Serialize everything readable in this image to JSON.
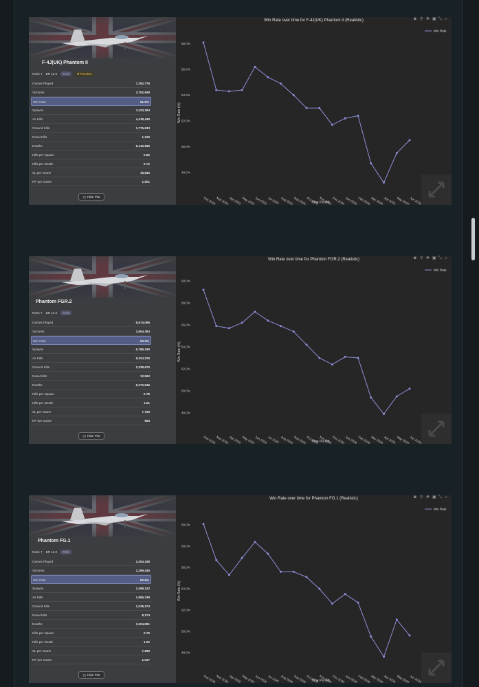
{
  "page": {
    "hide_plot_label": "Hide Plot",
    "toolbar_icons": [
      "camera-icon",
      "zoom-icon",
      "pan-icon",
      "autoscale-icon",
      "reset-axes-icon",
      "home-icon"
    ],
    "accent_line_color": "#8e8fd8",
    "highlight_row_color": "#545d85"
  },
  "vehicles": [
    {
      "name": "F-4J(UK) Phantom II",
      "rank": "Rank 7",
      "br": "BR 12.0",
      "id_badge": "#141",
      "premium_label": "Premium",
      "is_premium": true,
      "stats": [
        {
          "label": "Games Played",
          "value": "7,292,776"
        },
        {
          "label": "Victories",
          "value": "3,752,949"
        },
        {
          "label": "Win Rate",
          "value": "51.5%",
          "highlight": true
        },
        {
          "label": "Spawns",
          "value": "7,423,184"
        },
        {
          "label": "Air Kills",
          "value": "4,418,449"
        },
        {
          "label": "Ground Kills",
          "value": "1,776,933"
        },
        {
          "label": "Naval Kills",
          "value": "1,125"
        },
        {
          "label": "Deaths",
          "value": "6,140,585"
        },
        {
          "label": "Kills per Spawn",
          "value": "0.60"
        },
        {
          "label": "Kills per Death",
          "value": "0.72"
        },
        {
          "label": "SL per Game",
          "value": "15,844"
        },
        {
          "label": "RP per Game",
          "value": "1,921"
        }
      ],
      "chart_data": {
        "type": "line",
        "title": "Win Rate over time for F-4J(UK) Phantom II (Realistic)",
        "xlabel": "Time Period",
        "ylabel": "Win Rate (%)",
        "legend": "Win Rate",
        "legend_position": "top-right",
        "categories": [
          "Feb 2025",
          "Mar 2025",
          "Apr 2025",
          "May 2025",
          "Jun 2025",
          "Jul 2025",
          "Aug 2025",
          "Sep 2025",
          "Oct 2025",
          "Nov 2025",
          "Dec 2025",
          "Jan 2026",
          "Feb 2026",
          "Mar 2026",
          "Apr 2026",
          "May 2026",
          "Jun 2026"
        ],
        "values": [
          58.1,
          54.4,
          54.3,
          54.4,
          56.2,
          55.4,
          54.9,
          54.0,
          53.0,
          53.0,
          51.7,
          52.2,
          52.4,
          48.7,
          47.2,
          49.5,
          50.5
        ],
        "yticks": [
          "48.0%",
          "50.0%",
          "52.0%",
          "54.0%",
          "56.0%",
          "58.0%"
        ],
        "ylim": [
          46.6,
          59.0
        ],
        "grid": false
      }
    },
    {
      "name": "Phantom FGR.2",
      "rank": "Rank 7",
      "br": "BR 12.0",
      "id_badge": "#109",
      "premium_label": "",
      "is_premium": false,
      "stats": [
        {
          "label": "Games Played",
          "value": "6,674,095"
        },
        {
          "label": "Victories",
          "value": "3,554,393"
        },
        {
          "label": "Win Rate",
          "value": "53.3%",
          "highlight": true
        },
        {
          "label": "Spawns",
          "value": "6,786,349"
        },
        {
          "label": "Air Kills",
          "value": "5,324,225"
        },
        {
          "label": "Ground Kills",
          "value": "2,338,675"
        },
        {
          "label": "Naval Kills",
          "value": "12,563"
        },
        {
          "label": "Deaths",
          "value": "5,272,546"
        },
        {
          "label": "Kills per Spawn",
          "value": "0.78"
        },
        {
          "label": "Kills per Death",
          "value": "1.01"
        },
        {
          "label": "SL per Game",
          "value": "7,759"
        },
        {
          "label": "RP per Game",
          "value": "963"
        }
      ],
      "chart_data": {
        "type": "line",
        "title": "Win Rate over time for Phantom FGR.2 (Realistic)",
        "xlabel": "Time Period",
        "ylabel": "Win Rate (%)",
        "legend": "Win Rate",
        "legend_position": "top-right",
        "categories": [
          "Feb 2025",
          "Mar 2025",
          "Apr 2025",
          "May 2025",
          "Jun 2025",
          "Jul 2025",
          "Aug 2025",
          "Sep 2025",
          "Oct 2025",
          "Nov 2025",
          "Dec 2025",
          "Jan 2026",
          "Feb 2026",
          "Mar 2026",
          "Apr 2026",
          "May 2026",
          "Jun 2026"
        ],
        "values": [
          59.2,
          55.9,
          55.7,
          56.2,
          57.2,
          56.4,
          55.9,
          55.4,
          54.2,
          53.0,
          52.4,
          53.1,
          53.0,
          49.4,
          47.9,
          49.5,
          50.2
        ],
        "yticks": [
          "48.0%",
          "50.0%",
          "52.0%",
          "54.0%",
          "56.0%",
          "58.0%",
          "60.0%"
        ],
        "ylim": [
          46.5,
          61.0
        ],
        "grid": false
      }
    },
    {
      "name": "Phantom FG.1",
      "rank": "Rank 7",
      "br": "BR 12.0",
      "id_badge": "#350",
      "premium_label": "",
      "is_premium": false,
      "stats": [
        {
          "label": "Games Played",
          "value": "2,453,348"
        },
        {
          "label": "Victories",
          "value": "1,289,446"
        },
        {
          "label": "Win Rate",
          "value": "52.6%",
          "highlight": true
        },
        {
          "label": "Spawns",
          "value": "2,498,142"
        },
        {
          "label": "Air Kills",
          "value": "1,965,749"
        },
        {
          "label": "Ground Kills",
          "value": "1,039,374"
        },
        {
          "label": "Naval Kills",
          "value": "8,174"
        },
        {
          "label": "Deaths",
          "value": "1,924,891"
        },
        {
          "label": "Kills per Spawn",
          "value": "0.79"
        },
        {
          "label": "Kills per Death",
          "value": "1.02"
        },
        {
          "label": "SL per Game",
          "value": "7,999"
        },
        {
          "label": "RP per Game",
          "value": "1,037"
        }
      ],
      "chart_data": {
        "type": "line",
        "title": "Win Rate over time for Phantom FG.1 (Realistic)",
        "xlabel": "Time Period",
        "ylabel": "Win Rate (%)",
        "legend": "Win Rate",
        "legend_position": "top-right",
        "categories": [
          "Feb 2025",
          "Mar 2025",
          "Apr 2025",
          "May 2025",
          "Jun 2025",
          "Jul 2025",
          "Aug 2025",
          "Sep 2025",
          "Oct 2025",
          "Nov 2025",
          "Dec 2025",
          "Jan 2026",
          "Feb 2026",
          "Mar 2026",
          "Apr 2026",
          "May 2026",
          "Jun 2026"
        ],
        "values": [
          60.1,
          56.7,
          55.3,
          56.9,
          58.4,
          57.3,
          55.6,
          55.6,
          55.1,
          54.0,
          52.6,
          53.5,
          52.7,
          49.5,
          47.6,
          51.1,
          49.6
        ],
        "yticks": [
          "48.0%",
          "50.0%",
          "52.0%",
          "54.0%",
          "56.0%",
          "58.0%",
          "60.0%"
        ],
        "ylim": [
          46.5,
          61.5
        ],
        "grid": false
      }
    }
  ]
}
